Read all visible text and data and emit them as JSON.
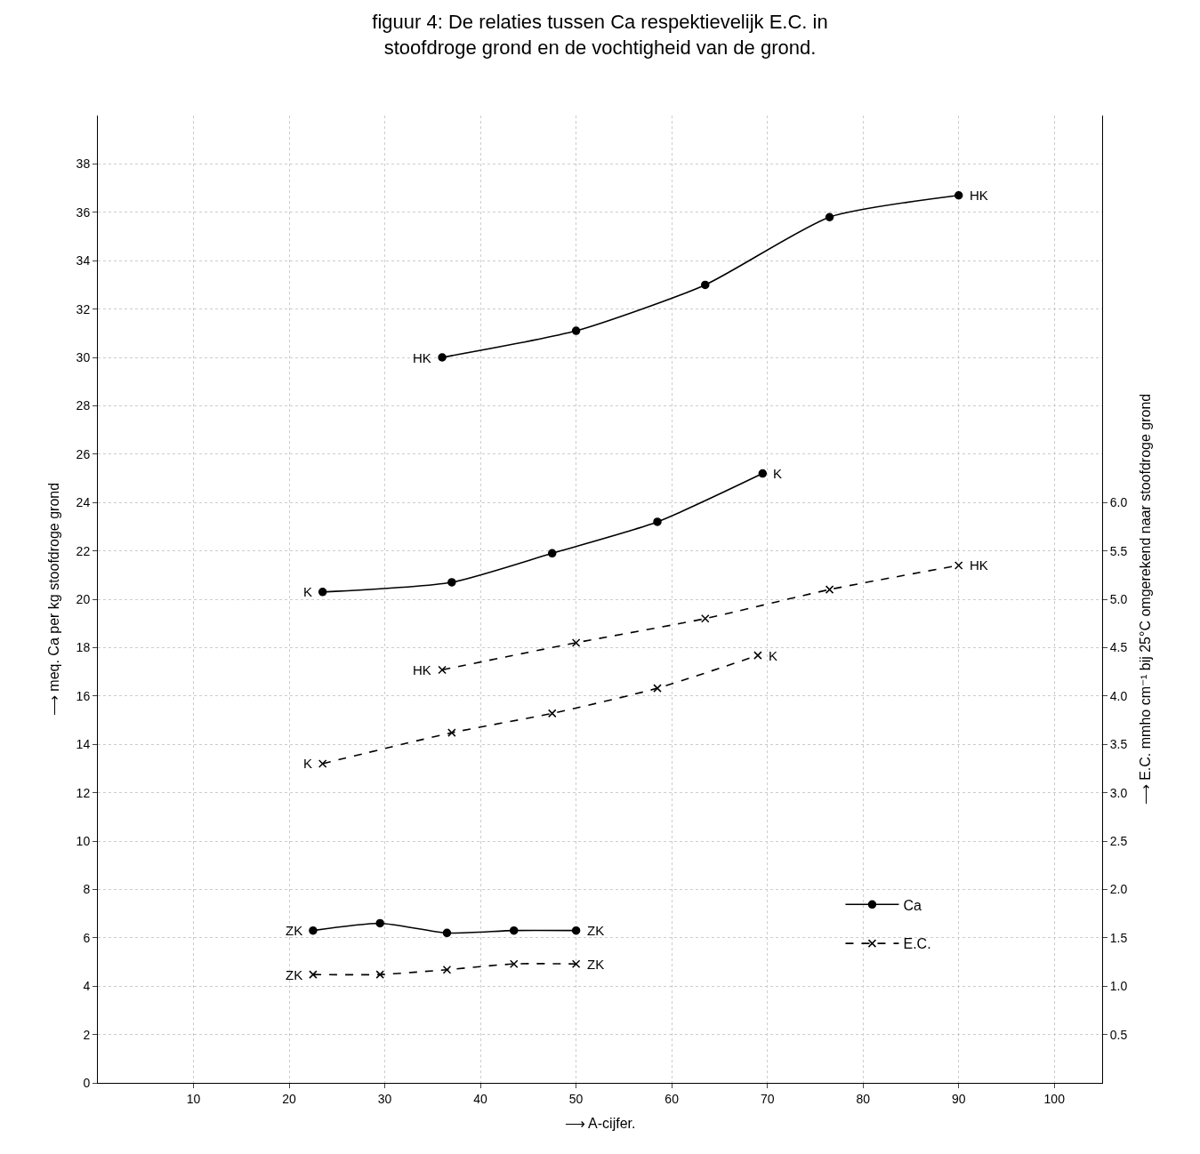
{
  "chart_data": {
    "type": "line",
    "title": "figuur 4: De relaties tussen Ca respektievelijk E.C. in stoofdroge grond en de vochtigheid van de grond.",
    "xlabel": "⟶ A-cijfer.",
    "ylabel": "⟶ meq. Ca per kg stoofdroge grond",
    "y2label": "⟶ E.C. mmho cm⁻¹ bij 25°C omgerekend naar stoofdroge grond",
    "xlim": [
      0,
      105
    ],
    "xticks": [
      10,
      20,
      30,
      40,
      50,
      60,
      70,
      80,
      90,
      100
    ],
    "ylim": [
      0,
      40
    ],
    "yticks": [
      0,
      2,
      4,
      6,
      8,
      10,
      12,
      14,
      16,
      18,
      20,
      22,
      24,
      26,
      28,
      30,
      32,
      34,
      36,
      38
    ],
    "y2lim": [
      0,
      10
    ],
    "y2ticks": [
      0.5,
      {
        "value": 1,
        "label": "1.0"
      },
      1.5,
      {
        "value": 2,
        "label": "2.0"
      },
      2.5,
      {
        "value": 3,
        "label": "3.0"
      },
      3.5,
      {
        "value": 4,
        "label": "4.0"
      },
      4.5,
      {
        "value": 5,
        "label": "5.0"
      },
      5.5,
      {
        "value": 6,
        "label": "6.0"
      }
    ],
    "grid": true,
    "legend": "bottom right",
    "series": [
      {
        "name": "Ca",
        "color": "#000000",
        "x": [
          36,
          50,
          63.5,
          76.5,
          90
        ],
        "values": [
          30,
          31.1,
          33,
          35.8,
          36.7
        ],
        "marker": "circle",
        "line_style": "solid"
      },
      {
        "color": "#000000",
        "x": [
          23.5,
          37,
          47.5,
          58.5,
          69.5
        ],
        "values": [
          20.3,
          20.7,
          21.9,
          23.2,
          25.2
        ],
        "marker": "circle",
        "line_style": "solid"
      },
      {
        "color": "#000000",
        "x": [
          22.5,
          29.5,
          36.5,
          43.5,
          50
        ],
        "values": [
          6.3,
          6.6,
          6.2,
          6.3,
          6.3
        ],
        "marker": "circle",
        "line_style": "solid"
      },
      {
        "name": "E.C.",
        "color": "#000000",
        "axis": "y2",
        "x": [
          36,
          50,
          63.5,
          76.5,
          90
        ],
        "values": [
          4.27,
          4.55,
          4.8,
          5.1,
          5.35
        ],
        "marker": "cross",
        "line_style": "dashed"
      },
      {
        "color": "#000000",
        "axis": "y2",
        "x": [
          23.5,
          37,
          47.5,
          58.5,
          69
        ],
        "values": [
          3.3,
          3.62,
          3.82,
          4.08,
          4.42
        ],
        "marker": "cross",
        "line_style": "dashed"
      },
      {
        "color": "#000000",
        "axis": "y2",
        "x": [
          22.5,
          29.5,
          36.5,
          43.5,
          50
        ],
        "values": [
          1.12,
          1.12,
          1.17,
          1.23,
          1.23
        ],
        "marker": "cross",
        "line_style": "dashed"
      }
    ],
    "annotations": [
      {
        "text": "HK",
        "x": 36,
        "y": 30
      },
      {
        "text": "HK",
        "x": 90,
        "y": 36.7
      },
      {
        "text": "K",
        "x": 23.5,
        "y": 20.3
      },
      {
        "text": "K",
        "x": 69.5,
        "y": 25.2
      },
      {
        "text": "ZK",
        "x": 22.5,
        "y": 6.3
      },
      {
        "text": "ZK",
        "x": 50,
        "y": 6.3
      },
      {
        "text": "HK",
        "x": 36,
        "y": 17.08
      },
      {
        "text": "HK",
        "x": 90,
        "y": 21.4
      },
      {
        "text": "K",
        "x": 23.5,
        "y": 13.2
      },
      {
        "text": "K",
        "x": 69,
        "y": 17.68
      },
      {
        "text": "ZK",
        "x": 22.5,
        "y": 4.48
      },
      {
        "text": "ZK",
        "x": 50,
        "y": 4.92
      }
    ]
  }
}
